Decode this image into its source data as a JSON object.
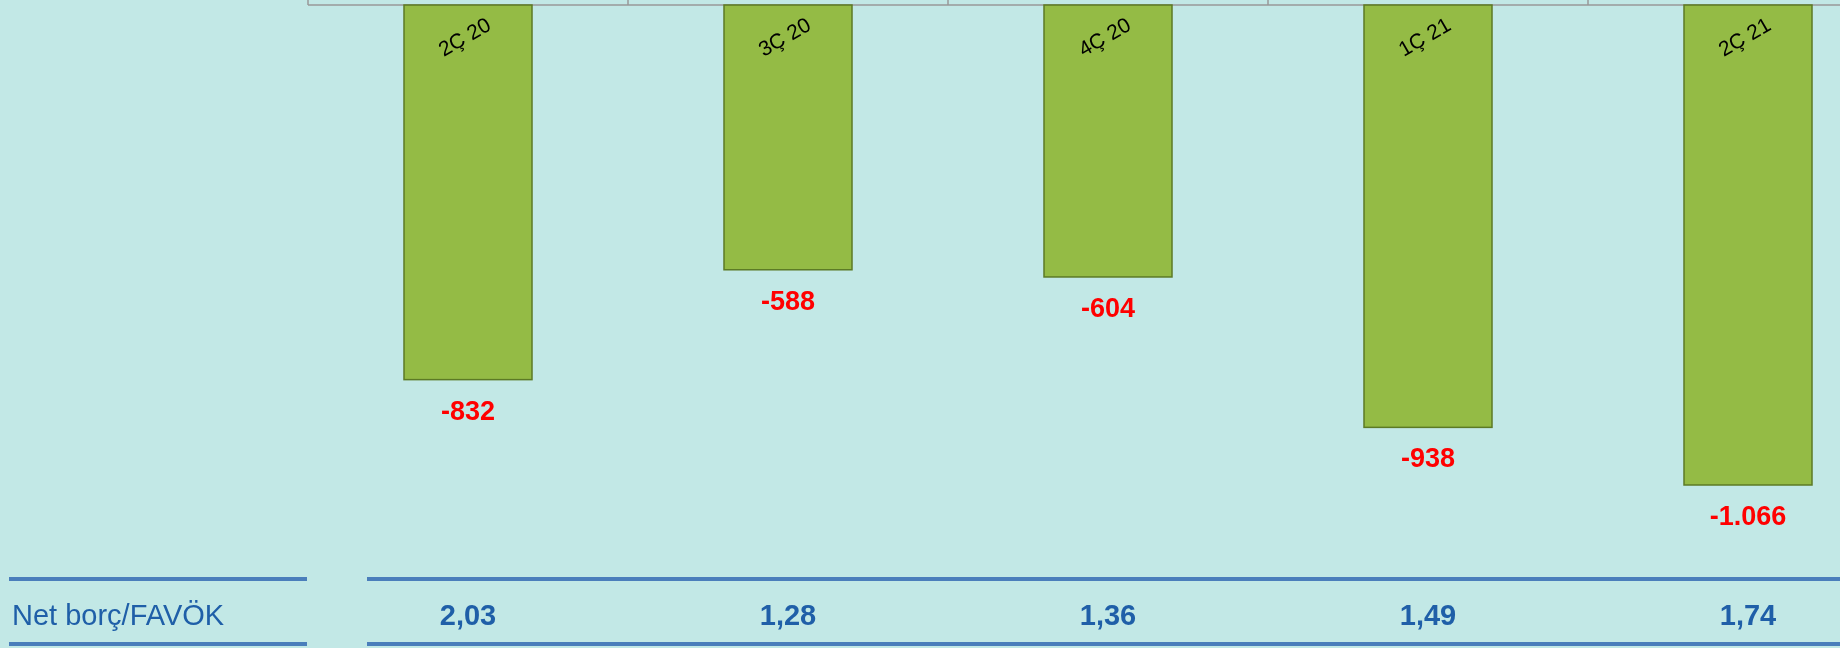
{
  "chart_data": {
    "type": "bar",
    "categories": [
      "2Ç 20",
      "3Ç 20",
      "4Ç 20",
      "1Ç 21",
      "2Ç 21"
    ],
    "series": [
      {
        "color": "#94bb45",
        "values": [
          -832,
          -588,
          -604,
          -938,
          -1066
        ],
        "value_labels": [
          "-832",
          "-588",
          "-604",
          "-938",
          "-1.066"
        ]
      }
    ],
    "annotations": [
      "Net borç/FAVÖK",
      "2,03",
      "1,28",
      "1,36",
      "1,49",
      "1,74"
    ]
  }
}
